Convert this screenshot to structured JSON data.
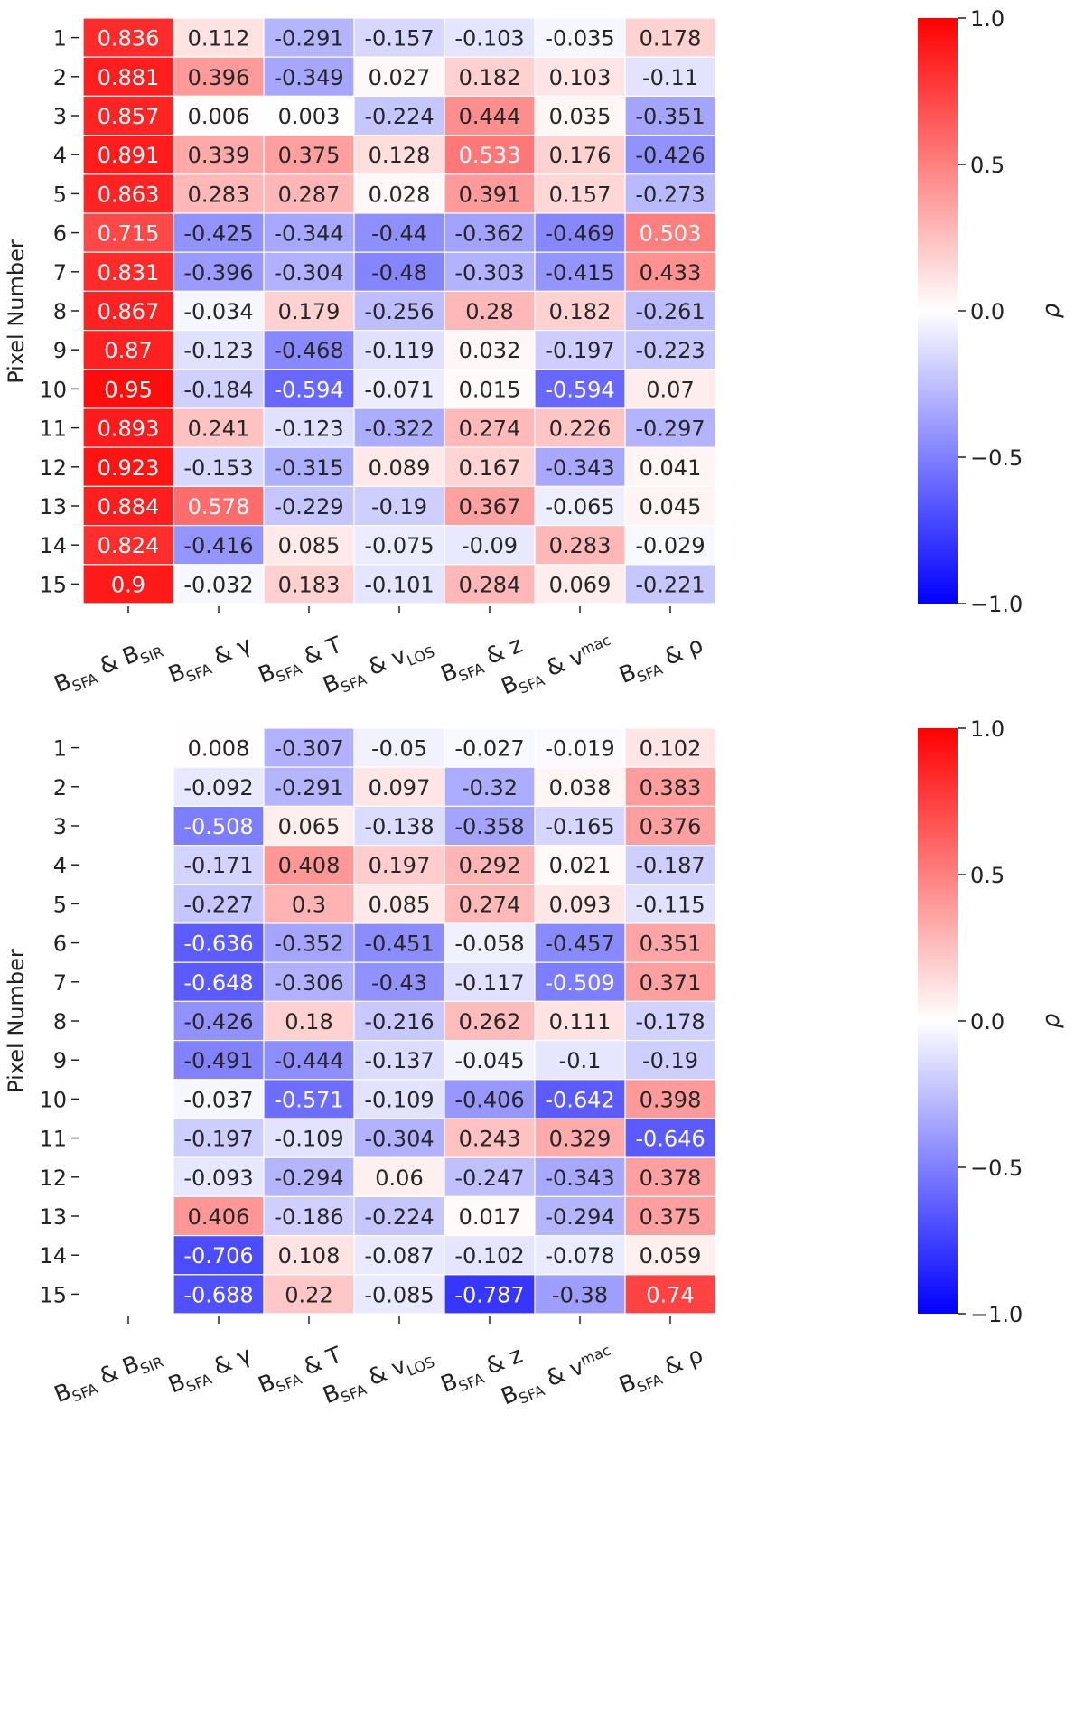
{
  "chart_data": [
    {
      "type": "heatmap",
      "title": "",
      "ylabel": "Pixel Number",
      "colorbar_label": "ρ",
      "colorbar_ticks": [
        "1.0",
        "0.5",
        "0.0",
        "−0.5",
        "−1.0"
      ],
      "colorbar_range": [
        -1.0,
        1.0
      ],
      "rows": [
        "1",
        "2",
        "3",
        "4",
        "5",
        "6",
        "7",
        "8",
        "9",
        "10",
        "11",
        "12",
        "13",
        "14",
        "15"
      ],
      "columns": [
        {
          "b": "B",
          "bs": "SFA",
          "a": " & ",
          "v": "B",
          "vs": "SIR"
        },
        {
          "b": "B",
          "bs": "SFA",
          "a": " & ",
          "v": "γ",
          "vs": ""
        },
        {
          "b": "B",
          "bs": "SFA",
          "a": " & ",
          "v": "T",
          "vs": ""
        },
        {
          "b": "B",
          "bs": "SFA",
          "a": " & ",
          "v": "v",
          "vs": "LOS"
        },
        {
          "b": "B",
          "bs": "SFA",
          "a": " & ",
          "v": "z",
          "vs": ""
        },
        {
          "b": "B",
          "bs": "SFA",
          "a": " & ",
          "v": "v",
          "vs": "mac"
        },
        {
          "b": "B",
          "bs": "SFA",
          "a": " & ",
          "v": "ρ",
          "vs": ""
        }
      ],
      "values": [
        [
          "0.836",
          "0.112",
          "-0.291",
          "-0.157",
          "-0.103",
          "-0.035",
          "0.178"
        ],
        [
          "0.881",
          "0.396",
          "-0.349",
          "0.027",
          "0.182",
          "0.103",
          "-0.11"
        ],
        [
          "0.857",
          "0.006",
          "0.003",
          "-0.224",
          "0.444",
          "0.035",
          "-0.351"
        ],
        [
          "0.891",
          "0.339",
          "0.375",
          "0.128",
          "0.533",
          "0.176",
          "-0.426"
        ],
        [
          "0.863",
          "0.283",
          "0.287",
          "0.028",
          "0.391",
          "0.157",
          "-0.273"
        ],
        [
          "0.715",
          "-0.425",
          "-0.344",
          "-0.44",
          "-0.362",
          "-0.469",
          "0.503"
        ],
        [
          "0.831",
          "-0.396",
          "-0.304",
          "-0.48",
          "-0.303",
          "-0.415",
          "0.433"
        ],
        [
          "0.867",
          "-0.034",
          "0.179",
          "-0.256",
          "0.28",
          "0.182",
          "-0.261"
        ],
        [
          "0.87",
          "-0.123",
          "-0.468",
          "-0.119",
          "0.032",
          "-0.197",
          "-0.223"
        ],
        [
          "0.95",
          "-0.184",
          "-0.594",
          "-0.071",
          "0.015",
          "-0.594",
          "0.07"
        ],
        [
          "0.893",
          "0.241",
          "-0.123",
          "-0.322",
          "0.274",
          "0.226",
          "-0.297"
        ],
        [
          "0.923",
          "-0.153",
          "-0.315",
          "0.089",
          "0.167",
          "-0.343",
          "0.041"
        ],
        [
          "0.884",
          "0.578",
          "-0.229",
          "-0.19",
          "0.367",
          "-0.065",
          "0.045"
        ],
        [
          "0.824",
          "-0.416",
          "0.085",
          "-0.075",
          "-0.09",
          "0.283",
          "-0.029"
        ],
        [
          "0.9",
          "-0.032",
          "0.183",
          "-0.101",
          "0.284",
          "0.069",
          "-0.221"
        ]
      ],
      "colormap": {
        "low": "#0000ff",
        "mid": "#ffffff",
        "high": "#ff0000"
      }
    },
    {
      "type": "heatmap",
      "title": "",
      "ylabel": "Pixel Number",
      "colorbar_label": "ρ",
      "colorbar_ticks": [
        "1.0",
        "0.5",
        "0.0",
        "−0.5",
        "−1.0"
      ],
      "colorbar_range": [
        -1.0,
        1.0
      ],
      "rows": [
        "1",
        "2",
        "3",
        "4",
        "5",
        "6",
        "7",
        "8",
        "9",
        "10",
        "11",
        "12",
        "13",
        "14",
        "15"
      ],
      "columns": [
        {
          "b": "B",
          "bs": "SFA",
          "a": " & ",
          "v": "B",
          "vs": "SIR"
        },
        {
          "b": "B",
          "bs": "SFA",
          "a": " & ",
          "v": "γ",
          "vs": ""
        },
        {
          "b": "B",
          "bs": "SFA",
          "a": " & ",
          "v": "T",
          "vs": ""
        },
        {
          "b": "B",
          "bs": "SFA",
          "a": " & ",
          "v": "v",
          "vs": "LOS"
        },
        {
          "b": "B",
          "bs": "SFA",
          "a": " & ",
          "v": "z",
          "vs": ""
        },
        {
          "b": "B",
          "bs": "SFA",
          "a": " & ",
          "v": "v",
          "vs": "mac"
        },
        {
          "b": "B",
          "bs": "SFA",
          "a": " & ",
          "v": "ρ",
          "vs": ""
        }
      ],
      "values": [
        [
          null,
          "0.008",
          "-0.307",
          "-0.05",
          "-0.027",
          "-0.019",
          "0.102"
        ],
        [
          null,
          "-0.092",
          "-0.291",
          "0.097",
          "-0.32",
          "0.038",
          "0.383"
        ],
        [
          null,
          "-0.508",
          "0.065",
          "-0.138",
          "-0.358",
          "-0.165",
          "0.376"
        ],
        [
          null,
          "-0.171",
          "0.408",
          "0.197",
          "0.292",
          "0.021",
          "-0.187"
        ],
        [
          null,
          "-0.227",
          "0.3",
          "0.085",
          "0.274",
          "0.093",
          "-0.115"
        ],
        [
          null,
          "-0.636",
          "-0.352",
          "-0.451",
          "-0.058",
          "-0.457",
          "0.351"
        ],
        [
          null,
          "-0.648",
          "-0.306",
          "-0.43",
          "-0.117",
          "-0.509",
          "0.371"
        ],
        [
          null,
          "-0.426",
          "0.18",
          "-0.216",
          "0.262",
          "0.111",
          "-0.178"
        ],
        [
          null,
          "-0.491",
          "-0.444",
          "-0.137",
          "-0.045",
          "-0.1",
          "-0.19"
        ],
        [
          null,
          "-0.037",
          "-0.571",
          "-0.109",
          "-0.406",
          "-0.642",
          "0.398"
        ],
        [
          null,
          "-0.197",
          "-0.109",
          "-0.304",
          "0.243",
          "0.329",
          "-0.646"
        ],
        [
          null,
          "-0.093",
          "-0.294",
          "0.06",
          "-0.247",
          "-0.343",
          "0.378"
        ],
        [
          null,
          "0.406",
          "-0.186",
          "-0.224",
          "0.017",
          "-0.294",
          "0.375"
        ],
        [
          null,
          "-0.706",
          "0.108",
          "-0.087",
          "-0.102",
          "-0.078",
          "0.059"
        ],
        [
          null,
          "-0.688",
          "0.22",
          "-0.085",
          "-0.787",
          "-0.38",
          "0.74"
        ]
      ],
      "colormap": {
        "low": "#0000ff",
        "mid": "#ffffff",
        "high": "#ff0000"
      }
    }
  ]
}
